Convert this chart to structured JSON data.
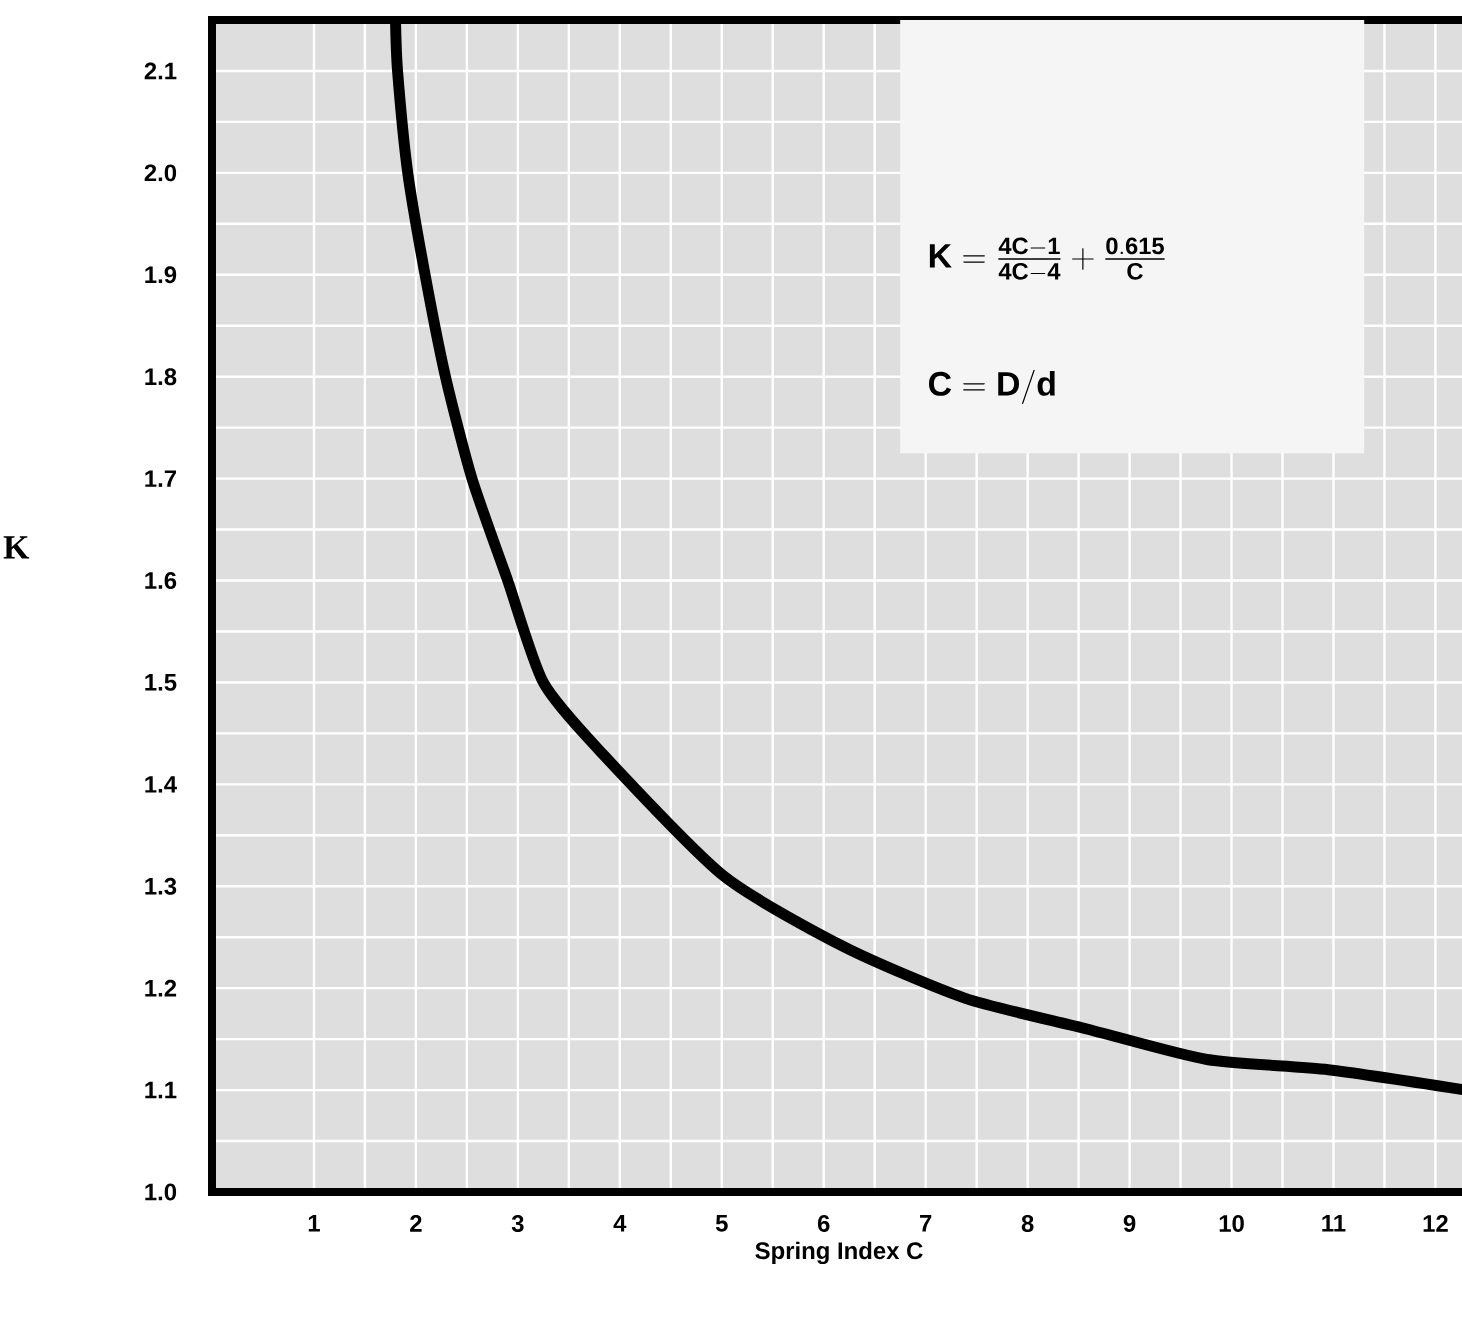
{
  "chart_data": {
    "type": "line",
    "xlabel": "Spring Index C",
    "ylabel": "K",
    "x": [
      1.8,
      1.82,
      1.92,
      2.09,
      2.29,
      2.55,
      2.9,
      3.25,
      3.83,
      5.02,
      6.21,
      7.39,
      8.58,
      9.76,
      10.95,
      12.3
    ],
    "series": [
      {
        "color": "#000000",
        "values": [
          2.15,
          2.1,
          2.0,
          1.9,
          1.8,
          1.7,
          1.6,
          1.5,
          1.43,
          1.31,
          1.24,
          1.19,
          1.16,
          1.13,
          1.12,
          1.1
        ]
      }
    ],
    "xlim": [
      0,
      12.3
    ],
    "ylim": [
      1.0,
      2.15
    ],
    "xticks": [
      1,
      2,
      3,
      4,
      5,
      6,
      7,
      8,
      9,
      10,
      11,
      12
    ],
    "yticks": [
      {
        "value": 1.0,
        "label": "1.0"
      },
      1.1,
      1.2,
      1.3,
      1.4,
      1.5,
      1.6,
      1.7,
      1.8,
      1.9,
      {
        "value": 2.0,
        "label": "2.0"
      },
      2.1
    ],
    "grid": true,
    "marker": "none",
    "line_style": "solid",
    "annotations": [
      "\\mathbf{K} = \\frac{\\mathbf{4C - 1}}{\\mathbf{4C - 4}} + \\frac{\\mathbf{0.615}}{\\mathbf{C}}",
      "\\mathbf{C = D/d}"
    ]
  }
}
